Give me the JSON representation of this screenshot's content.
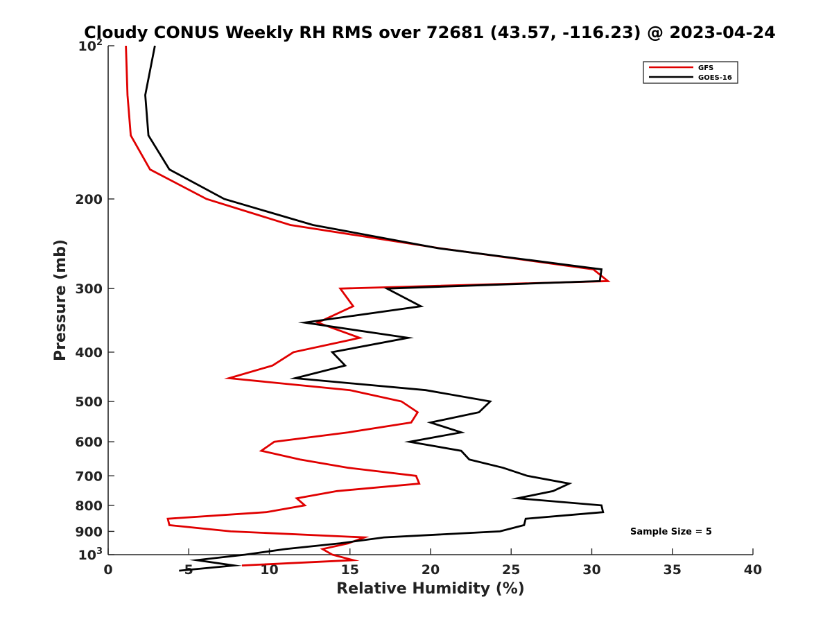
{
  "chart_data": {
    "type": "line",
    "orientation": "vertical-profile",
    "title": "Cloudy CONUS Weekly RH RMS over 72681 (43.57, -116.23) @ 2023-04-24",
    "xlabel": "Relative Humidity (%)",
    "ylabel": "Pressure (mb)",
    "xlim": [
      0,
      40
    ],
    "ylim": [
      100,
      1000
    ],
    "yscale": "log",
    "y_reversed": true,
    "x_ticks": [
      "0",
      "5",
      "10",
      "15",
      "20",
      "25",
      "30",
      "35",
      "40"
    ],
    "y_ticks": [
      {
        "value": 100,
        "base": "10",
        "exp": "2"
      },
      {
        "value": 200,
        "label": "200"
      },
      {
        "value": 300,
        "label": "300"
      },
      {
        "value": 400,
        "label": "400"
      },
      {
        "value": 500,
        "label": "500"
      },
      {
        "value": 600,
        "label": "600"
      },
      {
        "value": 700,
        "label": "700"
      },
      {
        "value": 800,
        "label": "800"
      },
      {
        "value": 900,
        "label": "900"
      },
      {
        "value": 1000,
        "base": "10",
        "exp": "3"
      }
    ],
    "grid": false,
    "legend_position": "top-right",
    "series": [
      {
        "name": "GFS",
        "color": "#e00000",
        "points": [
          {
            "p": 100,
            "rh": 1.1
          },
          {
            "p": 125,
            "rh": 1.2
          },
          {
            "p": 150,
            "rh": 1.4
          },
          {
            "p": 175,
            "rh": 2.6
          },
          {
            "p": 200,
            "rh": 6.1
          },
          {
            "p": 225,
            "rh": 11.3
          },
          {
            "p": 250,
            "rh": 20.6
          },
          {
            "p": 275,
            "rh": 30.1
          },
          {
            "p": 290,
            "rh": 31.0
          },
          {
            "p": 300,
            "rh": 14.4
          },
          {
            "p": 325,
            "rh": 15.2
          },
          {
            "p": 350,
            "rh": 13.0
          },
          {
            "p": 375,
            "rh": 15.6
          },
          {
            "p": 400,
            "rh": 11.5
          },
          {
            "p": 425,
            "rh": 10.2
          },
          {
            "p": 450,
            "rh": 7.5
          },
          {
            "p": 475,
            "rh": 15.0
          },
          {
            "p": 500,
            "rh": 18.2
          },
          {
            "p": 525,
            "rh": 19.2
          },
          {
            "p": 550,
            "rh": 18.8
          },
          {
            "p": 575,
            "rh": 14.9
          },
          {
            "p": 600,
            "rh": 10.3
          },
          {
            "p": 625,
            "rh": 9.5
          },
          {
            "p": 650,
            "rh": 11.9
          },
          {
            "p": 675,
            "rh": 14.9
          },
          {
            "p": 700,
            "rh": 19.1
          },
          {
            "p": 725,
            "rh": 19.3
          },
          {
            "p": 750,
            "rh": 14.2
          },
          {
            "p": 775,
            "rh": 11.7
          },
          {
            "p": 800,
            "rh": 12.2
          },
          {
            "p": 825,
            "rh": 9.8
          },
          {
            "p": 850,
            "rh": 3.7
          },
          {
            "p": 875,
            "rh": 3.8
          },
          {
            "p": 900,
            "rh": 7.6
          },
          {
            "p": 925,
            "rh": 15.9
          },
          {
            "p": 950,
            "rh": 14.9
          },
          {
            "p": 975,
            "rh": 13.3
          },
          {
            "p": 1000,
            "rh": 13.9
          },
          {
            "p": 1025,
            "rh": 15.2
          },
          {
            "p": 1050,
            "rh": 8.3
          }
        ]
      },
      {
        "name": "GOES-16",
        "color": "#000000",
        "points": [
          {
            "p": 100,
            "rh": 2.9
          },
          {
            "p": 125,
            "rh": 2.3
          },
          {
            "p": 150,
            "rh": 2.5
          },
          {
            "p": 175,
            "rh": 3.8
          },
          {
            "p": 200,
            "rh": 7.2
          },
          {
            "p": 225,
            "rh": 12.7
          },
          {
            "p": 250,
            "rh": 20.5
          },
          {
            "p": 275,
            "rh": 30.6
          },
          {
            "p": 290,
            "rh": 30.5
          },
          {
            "p": 300,
            "rh": 17.3
          },
          {
            "p": 325,
            "rh": 19.4
          },
          {
            "p": 350,
            "rh": 12.2
          },
          {
            "p": 375,
            "rh": 18.6
          },
          {
            "p": 400,
            "rh": 13.9
          },
          {
            "p": 425,
            "rh": 14.7
          },
          {
            "p": 450,
            "rh": 11.6
          },
          {
            "p": 475,
            "rh": 19.7
          },
          {
            "p": 500,
            "rh": 23.7
          },
          {
            "p": 525,
            "rh": 23.0
          },
          {
            "p": 550,
            "rh": 20.0
          },
          {
            "p": 575,
            "rh": 21.9
          },
          {
            "p": 600,
            "rh": 18.7
          },
          {
            "p": 625,
            "rh": 21.9
          },
          {
            "p": 650,
            "rh": 22.4
          },
          {
            "p": 675,
            "rh": 24.5
          },
          {
            "p": 700,
            "rh": 26.0
          },
          {
            "p": 725,
            "rh": 28.6
          },
          {
            "p": 750,
            "rh": 27.6
          },
          {
            "p": 775,
            "rh": 25.4
          },
          {
            "p": 800,
            "rh": 30.6
          },
          {
            "p": 825,
            "rh": 30.7
          },
          {
            "p": 850,
            "rh": 25.9
          },
          {
            "p": 875,
            "rh": 25.8
          },
          {
            "p": 900,
            "rh": 24.3
          },
          {
            "p": 925,
            "rh": 17.1
          },
          {
            "p": 950,
            "rh": 14.4
          },
          {
            "p": 975,
            "rh": 11.0
          },
          {
            "p": 1000,
            "rh": 8.5
          },
          {
            "p": 1025,
            "rh": 5.5
          },
          {
            "p": 1050,
            "rh": 7.8
          },
          {
            "p": 1075,
            "rh": 4.4
          }
        ]
      }
    ],
    "annotation": "Sample Size = 5"
  }
}
